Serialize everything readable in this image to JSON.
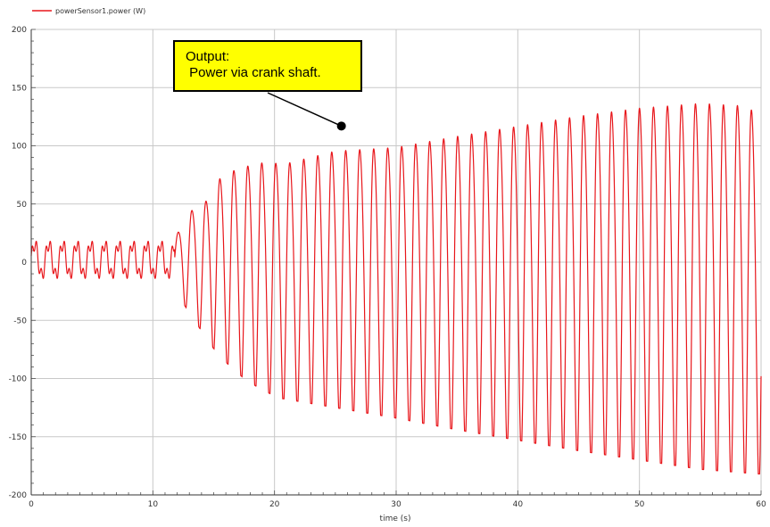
{
  "chart_data": {
    "type": "line",
    "title": "",
    "xlabel": "time (s)",
    "ylabel": "",
    "xlim": [
      0,
      60
    ],
    "ylim": [
      -200,
      200
    ],
    "x_ticks": [
      0,
      10,
      20,
      30,
      40,
      50,
      60
    ],
    "y_ticks": [
      -200,
      -150,
      -100,
      -50,
      0,
      50,
      100,
      150,
      200
    ],
    "grid": true,
    "legend_position": "top-left",
    "series": [
      {
        "name": "powerSensor1.power (W)",
        "color": "#e8161b",
        "shape": {
          "phase1_end_s": 11.8,
          "phase1_period_s": 1.15,
          "phase1_max_W": 20,
          "phase1_min_W": -16,
          "phase2_period_s": 1.15,
          "peaks": [
            [
              11.7,
              20
            ],
            [
              12.8,
              48
            ],
            [
              14.3,
              60
            ],
            [
              15.5,
              83
            ],
            [
              17.0,
              94
            ],
            [
              19.0,
              100
            ],
            [
              21.0,
              100
            ],
            [
              25.0,
              112
            ],
            [
              30.0,
              116
            ],
            [
              35.0,
              127
            ],
            [
              40.0,
              137
            ],
            [
              45.0,
              147
            ],
            [
              50.0,
              155
            ],
            [
              55.0,
              160
            ],
            [
              58.5,
              158
            ],
            [
              60.0,
              150
            ]
          ],
          "troughs": [
            [
              11.7,
              -16
            ],
            [
              12.6,
              -37
            ],
            [
              13.8,
              -56
            ],
            [
              14.9,
              -73
            ],
            [
              16.2,
              -88
            ],
            [
              17.5,
              -100
            ],
            [
              19.0,
              -110
            ],
            [
              20.5,
              -117
            ],
            [
              25.0,
              -125
            ],
            [
              30.0,
              -134
            ],
            [
              35.0,
              -144
            ],
            [
              40.0,
              -153
            ],
            [
              45.0,
              -162
            ],
            [
              50.0,
              -170
            ],
            [
              55.0,
              -178
            ],
            [
              59.8,
              -182
            ]
          ]
        }
      }
    ],
    "annotation": {
      "lines": [
        "Output:",
        " Power via crank shaft."
      ],
      "pointer_at": [
        25.5,
        117
      ],
      "box_color": "#ffff00"
    }
  }
}
